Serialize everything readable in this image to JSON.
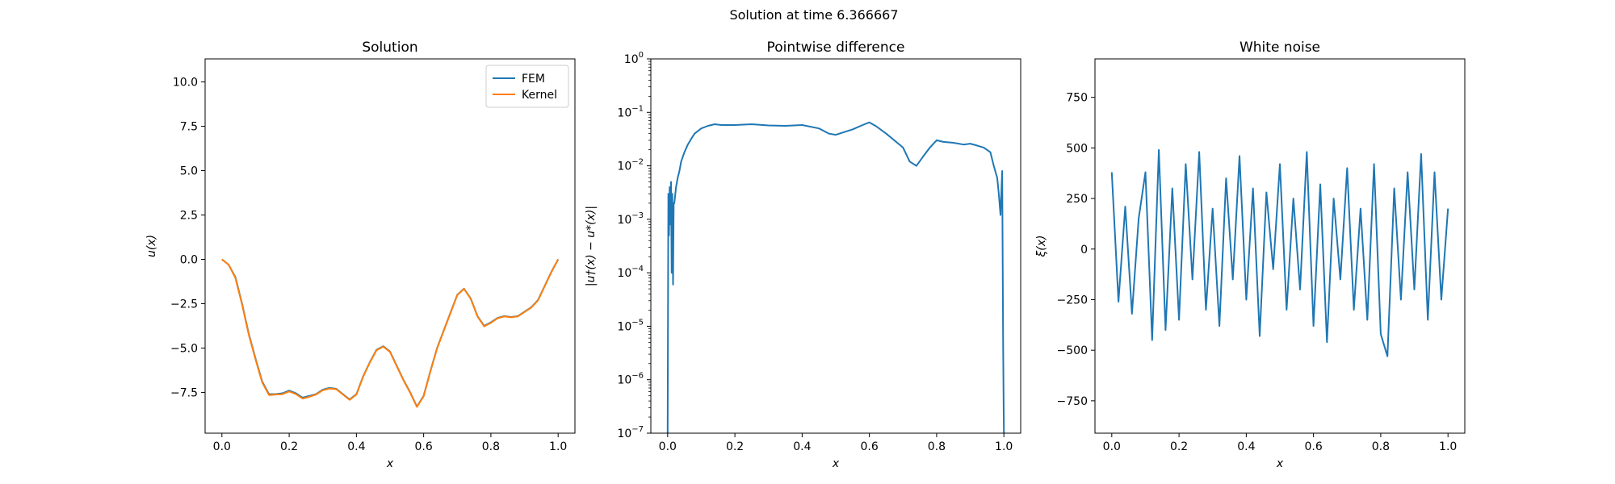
{
  "figure": {
    "suptitle": "Solution at time 6.366667"
  },
  "colors": {
    "fem": "#1f77b4",
    "kernel": "#ff7f0e",
    "noise": "#1f77b4",
    "diff": "#1f77b4"
  },
  "chart_data": [
    {
      "type": "line",
      "title": "Solution",
      "xlabel": "x",
      "ylabel": "u(x)",
      "xlim": [
        -0.05,
        1.05
      ],
      "ylim": [
        -9.8,
        11.3
      ],
      "xticks": [
        0.0,
        0.2,
        0.4,
        0.6,
        0.8,
        1.0
      ],
      "xtick_labels": [
        "0.0",
        "0.2",
        "0.4",
        "0.6",
        "0.8",
        "1.0"
      ],
      "yticks": [
        -7.5,
        -5.0,
        -2.5,
        0.0,
        2.5,
        5.0,
        7.5,
        10.0
      ],
      "ytick_labels": [
        "−7.5",
        "−5.0",
        "−2.5",
        "0.0",
        "2.5",
        "5.0",
        "7.5",
        "10.0"
      ],
      "legend": "top-right",
      "series": [
        {
          "name": "FEM",
          "x": [
            0,
            0.02,
            0.04,
            0.06,
            0.08,
            0.1,
            0.12,
            0.14,
            0.16,
            0.18,
            0.2,
            0.22,
            0.24,
            0.26,
            0.28,
            0.3,
            0.32,
            0.34,
            0.36,
            0.38,
            0.4,
            0.42,
            0.44,
            0.46,
            0.48,
            0.5,
            0.52,
            0.54,
            0.56,
            0.58,
            0.6,
            0.62,
            0.64,
            0.66,
            0.68,
            0.7,
            0.72,
            0.74,
            0.76,
            0.78,
            0.8,
            0.82,
            0.84,
            0.86,
            0.88,
            0.9,
            0.92,
            0.94,
            0.96,
            0.98,
            1.0
          ],
          "y": [
            0,
            -0.3,
            -1.0,
            -2.5,
            -4.2,
            -5.6,
            -6.9,
            -7.6,
            -7.6,
            -7.55,
            -7.4,
            -7.55,
            -7.8,
            -7.7,
            -7.6,
            -7.35,
            -7.25,
            -7.3,
            -7.6,
            -7.9,
            -7.6,
            -6.6,
            -5.8,
            -5.1,
            -4.9,
            -5.2,
            -6.0,
            -6.8,
            -7.5,
            -8.3,
            -7.7,
            -6.3,
            -5.0,
            -4.0,
            -3.0,
            -2.0,
            -1.65,
            -2.2,
            -3.2,
            -3.75,
            -3.55,
            -3.3,
            -3.2,
            -3.25,
            -3.2,
            -2.95,
            -2.7,
            -2.3,
            -1.5,
            -0.7,
            0.0
          ]
        },
        {
          "name": "Kernel",
          "x": [
            0,
            0.02,
            0.04,
            0.06,
            0.08,
            0.1,
            0.12,
            0.14,
            0.16,
            0.18,
            0.2,
            0.22,
            0.24,
            0.26,
            0.28,
            0.3,
            0.32,
            0.34,
            0.36,
            0.38,
            0.4,
            0.42,
            0.44,
            0.46,
            0.48,
            0.5,
            0.52,
            0.54,
            0.56,
            0.58,
            0.6,
            0.62,
            0.64,
            0.66,
            0.68,
            0.7,
            0.72,
            0.74,
            0.76,
            0.78,
            0.8,
            0.82,
            0.84,
            0.86,
            0.88,
            0.9,
            0.92,
            0.94,
            0.96,
            0.98,
            1.0
          ],
          "y": [
            0,
            -0.3,
            -1.05,
            -2.55,
            -4.25,
            -5.65,
            -6.95,
            -7.65,
            -7.62,
            -7.6,
            -7.45,
            -7.6,
            -7.85,
            -7.75,
            -7.62,
            -7.38,
            -7.28,
            -7.32,
            -7.62,
            -7.92,
            -7.62,
            -6.62,
            -5.82,
            -5.12,
            -4.92,
            -5.22,
            -6.02,
            -6.82,
            -7.52,
            -8.32,
            -7.72,
            -6.32,
            -5.02,
            -4.02,
            -3.02,
            -2.02,
            -1.66,
            -2.22,
            -3.22,
            -3.78,
            -3.58,
            -3.32,
            -3.22,
            -3.27,
            -3.22,
            -2.97,
            -2.72,
            -2.32,
            -1.52,
            -0.72,
            0.0
          ]
        }
      ]
    },
    {
      "type": "line",
      "title": "Pointwise difference",
      "xlabel": "x",
      "ylabel": "|u†(x) − u*(x)|",
      "yscale": "log",
      "xlim": [
        -0.05,
        1.05
      ],
      "ylim": [
        1e-07,
        1
      ],
      "xticks": [
        0.0,
        0.2,
        0.4,
        0.6,
        0.8,
        1.0
      ],
      "xtick_labels": [
        "0.0",
        "0.2",
        "0.4",
        "0.6",
        "0.8",
        "1.0"
      ],
      "yticks": [
        1e-07,
        1e-06,
        1e-05,
        0.0001,
        0.001,
        0.01,
        0.1,
        1
      ],
      "ytick_labels": [
        [
          "10",
          "−7"
        ],
        [
          "10",
          "−6"
        ],
        [
          "10",
          "−5"
        ],
        [
          "10",
          "−4"
        ],
        [
          "10",
          "−3"
        ],
        [
          "10",
          "−2"
        ],
        [
          "10",
          "−1"
        ],
        [
          "10",
          "0"
        ]
      ],
      "series": [
        {
          "x": [
            0,
            0.002,
            0.004,
            0.006,
            0.008,
            0.01,
            0.012,
            0.014,
            0.016,
            0.018,
            0.02,
            0.025,
            0.03,
            0.035,
            0.04,
            0.05,
            0.06,
            0.07,
            0.08,
            0.1,
            0.12,
            0.14,
            0.16,
            0.2,
            0.25,
            0.3,
            0.35,
            0.4,
            0.45,
            0.48,
            0.5,
            0.55,
            0.58,
            0.6,
            0.62,
            0.65,
            0.7,
            0.72,
            0.74,
            0.76,
            0.78,
            0.8,
            0.82,
            0.85,
            0.88,
            0.9,
            0.92,
            0.94,
            0.96,
            0.97,
            0.98,
            0.985,
            0.99,
            0.995,
            0.998,
            1.0
          ],
          "y": [
            1e-07,
            0.003,
            0.0005,
            0.004,
            0.0008,
            0.005,
            0.0001,
            0.003,
            6e-05,
            0.002,
            0.002,
            0.004,
            0.006,
            0.008,
            0.012,
            0.018,
            0.025,
            0.032,
            0.04,
            0.05,
            0.056,
            0.06,
            0.058,
            0.058,
            0.06,
            0.057,
            0.056,
            0.058,
            0.05,
            0.04,
            0.038,
            0.048,
            0.058,
            0.065,
            0.055,
            0.04,
            0.022,
            0.012,
            0.01,
            0.015,
            0.022,
            0.03,
            0.028,
            0.027,
            0.025,
            0.026,
            0.024,
            0.022,
            0.018,
            0.01,
            0.006,
            0.003,
            0.0012,
            0.008,
            4e-06,
            1e-07
          ]
        }
      ]
    },
    {
      "type": "line",
      "title": "White noise",
      "xlabel": "x",
      "ylabel": "ξ(x)",
      "xlim": [
        -0.05,
        1.05
      ],
      "ylim": [
        -910,
        940
      ],
      "xticks": [
        0.0,
        0.2,
        0.4,
        0.6,
        0.8,
        1.0
      ],
      "xtick_labels": [
        "0.0",
        "0.2",
        "0.4",
        "0.6",
        "0.8",
        "1.0"
      ],
      "yticks": [
        -750,
        -500,
        -250,
        0,
        250,
        500,
        750
      ],
      "ytick_labels": [
        "−750",
        "−500",
        "−250",
        "0",
        "250",
        "500",
        "750"
      ],
      "series": [
        {
          "x": [
            0,
            0.02,
            0.04,
            0.06,
            0.08,
            0.1,
            0.12,
            0.14,
            0.16,
            0.18,
            0.2,
            0.22,
            0.24,
            0.26,
            0.28,
            0.3,
            0.32,
            0.34,
            0.36,
            0.38,
            0.4,
            0.42,
            0.44,
            0.46,
            0.48,
            0.5,
            0.52,
            0.54,
            0.56,
            0.58,
            0.6,
            0.62,
            0.64,
            0.66,
            0.68,
            0.7,
            0.72,
            0.74,
            0.76,
            0.78,
            0.8,
            0.82,
            0.84,
            0.86,
            0.88,
            0.9,
            0.92,
            0.94,
            0.96,
            0.98,
            1.0
          ],
          "y": [
            380,
            -260,
            210,
            -320,
            150,
            380,
            -450,
            490,
            -400,
            300,
            -350,
            420,
            -150,
            480,
            -300,
            200,
            -380,
            350,
            -150,
            460,
            -250,
            300,
            -430,
            280,
            -100,
            420,
            -300,
            250,
            -200,
            480,
            -380,
            320,
            -460,
            250,
            -150,
            400,
            -300,
            200,
            -350,
            420,
            -420,
            -530,
            300,
            -250,
            380,
            -200,
            470,
            -350,
            380,
            -250,
            200
          ]
        }
      ]
    }
  ]
}
